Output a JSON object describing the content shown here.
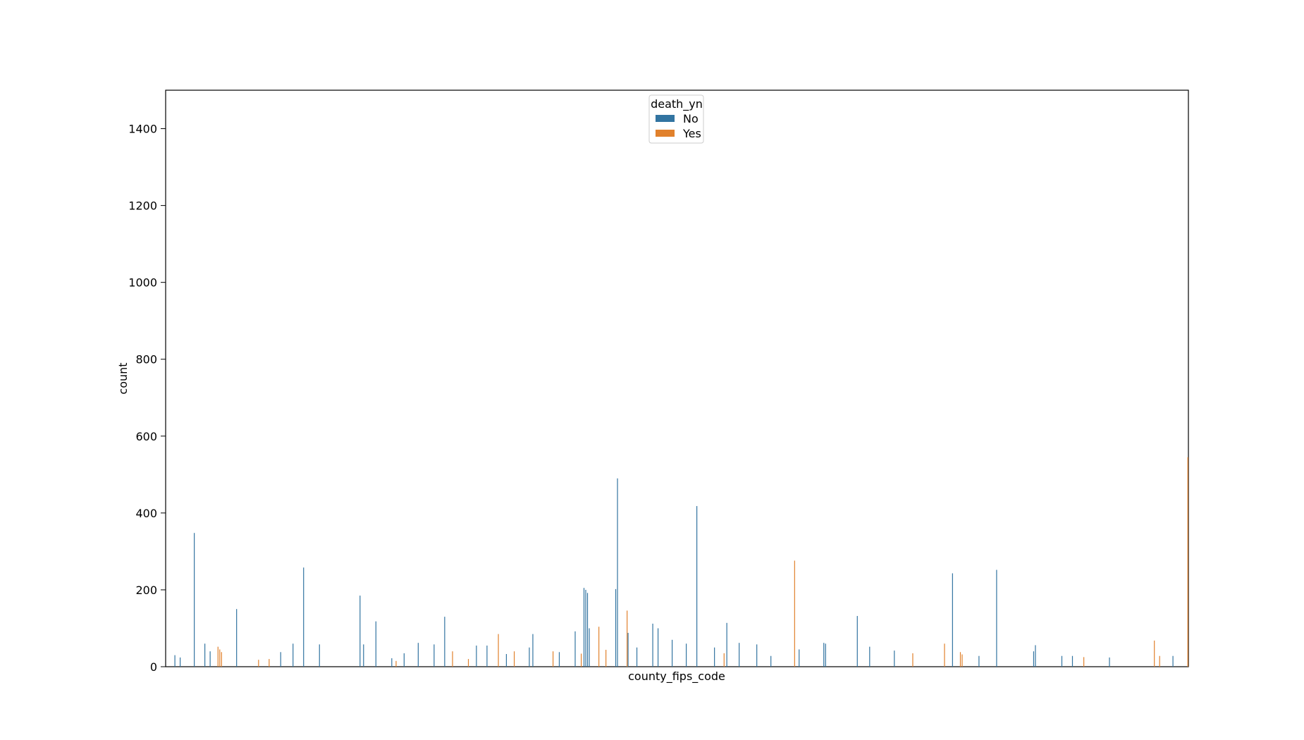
{
  "chart_data": {
    "type": "bar",
    "xlabel": "county_fips_code",
    "ylabel": "count",
    "ylim": [
      0,
      1500
    ],
    "yticks": [
      0,
      200,
      400,
      600,
      800,
      1000,
      1200,
      1400
    ],
    "grid": false,
    "legend": {
      "title": "death_yn",
      "placement": "top-center",
      "entries": [
        {
          "label": "No",
          "color": "#3274a1"
        },
        {
          "label": "Yes",
          "color": "#e1812c"
        }
      ]
    },
    "category_count": 580,
    "series": [
      {
        "name": "No",
        "color": "#3274a1",
        "peaks": [
          {
            "category": 5,
            "value": 30
          },
          {
            "category": 8,
            "value": 24
          },
          {
            "category": 16,
            "value": 348
          },
          {
            "category": 22,
            "value": 60
          },
          {
            "category": 25,
            "value": 40
          },
          {
            "category": 40,
            "value": 150
          },
          {
            "category": 65,
            "value": 38
          },
          {
            "category": 72,
            "value": 60
          },
          {
            "category": 78,
            "value": 258
          },
          {
            "category": 87,
            "value": 58
          },
          {
            "category": 110,
            "value": 185
          },
          {
            "category": 112,
            "value": 58
          },
          {
            "category": 119,
            "value": 118
          },
          {
            "category": 128,
            "value": 22
          },
          {
            "category": 135,
            "value": 35
          },
          {
            "category": 143,
            "value": 62
          },
          {
            "category": 152,
            "value": 58
          },
          {
            "category": 158,
            "value": 130
          },
          {
            "category": 176,
            "value": 55
          },
          {
            "category": 182,
            "value": 55
          },
          {
            "category": 193,
            "value": 33
          },
          {
            "category": 206,
            "value": 50
          },
          {
            "category": 208,
            "value": 85
          },
          {
            "category": 223,
            "value": 38
          },
          {
            "category": 232,
            "value": 92
          },
          {
            "category": 237,
            "value": 205
          },
          {
            "category": 238,
            "value": 200
          },
          {
            "category": 239,
            "value": 192
          },
          {
            "category": 240,
            "value": 100
          },
          {
            "category": 255,
            "value": 202
          },
          {
            "category": 256,
            "value": 490
          },
          {
            "category": 262,
            "value": 88
          },
          {
            "category": 267,
            "value": 50
          },
          {
            "category": 276,
            "value": 112
          },
          {
            "category": 279,
            "value": 100
          },
          {
            "category": 287,
            "value": 70
          },
          {
            "category": 295,
            "value": 60
          },
          {
            "category": 301,
            "value": 418
          },
          {
            "category": 311,
            "value": 50
          },
          {
            "category": 318,
            "value": 114
          },
          {
            "category": 325,
            "value": 62
          },
          {
            "category": 335,
            "value": 58
          },
          {
            "category": 343,
            "value": 28
          },
          {
            "category": 359,
            "value": 45
          },
          {
            "category": 373,
            "value": 62
          },
          {
            "category": 374,
            "value": 60
          },
          {
            "category": 392,
            "value": 132
          },
          {
            "category": 399,
            "value": 52
          },
          {
            "category": 413,
            "value": 42
          },
          {
            "category": 446,
            "value": 243
          },
          {
            "category": 461,
            "value": 28
          },
          {
            "category": 471,
            "value": 252
          },
          {
            "category": 492,
            "value": 40
          },
          {
            "category": 493,
            "value": 56
          },
          {
            "category": 508,
            "value": 28
          },
          {
            "category": 514,
            "value": 28
          },
          {
            "category": 535,
            "value": 24
          },
          {
            "category": 571,
            "value": 28
          }
        ]
      },
      {
        "name": "Yes",
        "color": "#e1812c",
        "peaks": [
          {
            "category": 29,
            "value": 52
          },
          {
            "category": 30,
            "value": 45
          },
          {
            "category": 31,
            "value": 38
          },
          {
            "category": 52,
            "value": 18
          },
          {
            "category": 58,
            "value": 20
          },
          {
            "category": 130,
            "value": 15
          },
          {
            "category": 162,
            "value": 40
          },
          {
            "category": 171,
            "value": 20
          },
          {
            "category": 188,
            "value": 85
          },
          {
            "category": 197,
            "value": 40
          },
          {
            "category": 219,
            "value": 40
          },
          {
            "category": 235,
            "value": 34
          },
          {
            "category": 245,
            "value": 104
          },
          {
            "category": 249,
            "value": 44
          },
          {
            "category": 261,
            "value": 146
          },
          {
            "category": 316,
            "value": 35
          },
          {
            "category": 356,
            "value": 276
          },
          {
            "category": 423,
            "value": 35
          },
          {
            "category": 441,
            "value": 60
          },
          {
            "category": 450,
            "value": 38
          },
          {
            "category": 451,
            "value": 32
          },
          {
            "category": 520,
            "value": 25
          },
          {
            "category": 560,
            "value": 68
          },
          {
            "category": 563,
            "value": 28
          },
          {
            "category": 579,
            "value": 545
          }
        ]
      }
    ]
  }
}
